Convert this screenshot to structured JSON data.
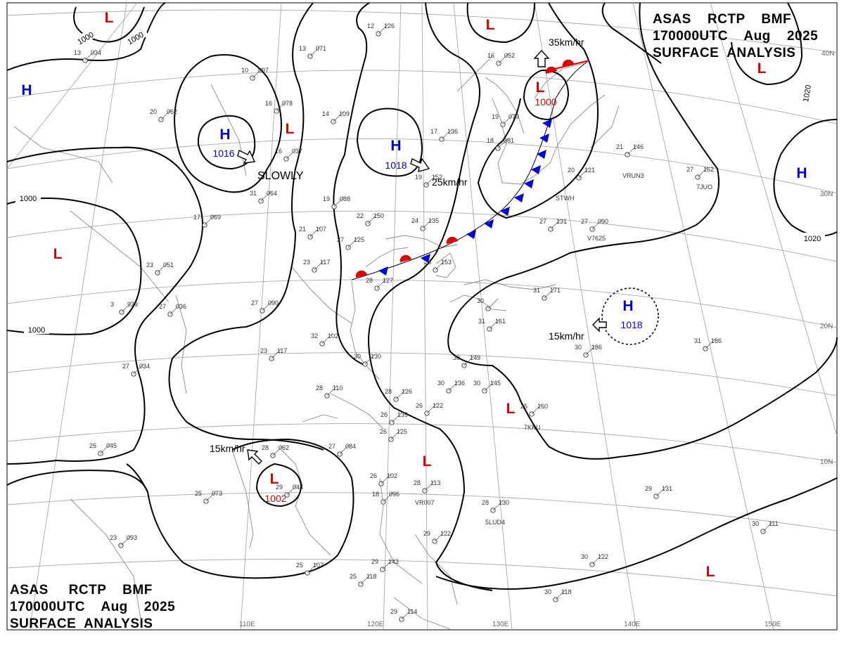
{
  "header_top_right": {
    "line1": "ASAS    RCTP    BMF",
    "line2": "170000UTC    Aug    2025",
    "line3": "SURFACE  ANALYSIS"
  },
  "header_bottom_left": {
    "line1": "ASAS     RCTP    BMF",
    "line2": "170000UTC    Aug    2025",
    "line3": "SURFACE  ANALYSIS"
  },
  "lon_labels": [
    "110E",
    "120E",
    "130E",
    "140E",
    "150E"
  ],
  "lat_labels": [
    "40N",
    "30N",
    "20N",
    "10N"
  ],
  "pressure_centers": [
    {
      "type": "L",
      "value": ""
    },
    {
      "type": "H",
      "value": ""
    },
    {
      "type": "H",
      "value": "1016"
    },
    {
      "type": "L",
      "value": ""
    },
    {
      "type": "H",
      "value": "1018"
    },
    {
      "type": "L",
      "value": "1000"
    },
    {
      "type": "L",
      "value": ""
    },
    {
      "type": "H",
      "value": ""
    },
    {
      "type": "L",
      "value": ""
    },
    {
      "type": "H",
      "value": "1018"
    },
    {
      "type": "L",
      "value": ""
    },
    {
      "type": "L",
      "value": "1002"
    },
    {
      "type": "L",
      "value": ""
    },
    {
      "type": "L",
      "value": ""
    },
    {
      "type": "L",
      "value": ""
    }
  ],
  "isobar_labels": [
    "1000",
    "1000",
    "1000",
    "1000",
    "1020",
    "1020"
  ],
  "motion_labels": [
    "35km/hr",
    "SLOWLY",
    "25km/hr",
    "15km/hr",
    "15km/hr"
  ],
  "stations": [
    {
      "t": "13",
      "p": "034"
    },
    {
      "t": "13",
      "p": "071"
    },
    {
      "t": "10",
      "p": "097"
    },
    {
      "t": "12",
      "p": "126"
    },
    {
      "t": "16",
      "p": "078"
    },
    {
      "t": "14",
      "p": "109"
    },
    {
      "t": "20",
      "p": "062"
    },
    {
      "t": "16",
      "p": "037"
    },
    {
      "t": "17",
      "p": "136"
    },
    {
      "t": "16",
      "p": "052"
    },
    {
      "t": "19",
      "p": "079"
    },
    {
      "t": "18",
      "p": "081"
    },
    {
      "t": "21",
      "p": "146"
    },
    {
      "t": "20",
      "p": "121"
    },
    {
      "t": "27",
      "p": "162"
    },
    {
      "t": "31",
      "p": "064"
    },
    {
      "t": "19",
      "p": "088"
    },
    {
      "t": "19",
      "p": "152"
    },
    {
      "t": "22",
      "p": "150"
    },
    {
      "t": "24",
      "p": "135"
    },
    {
      "t": "17",
      "p": "069"
    },
    {
      "t": "21",
      "p": "107"
    },
    {
      "t": "27",
      "p": "125"
    },
    {
      "t": "27",
      "p": "131"
    },
    {
      "t": "27",
      "p": "090"
    },
    {
      "t": "23",
      "p": "051"
    },
    {
      "t": "23",
      "p": "117"
    },
    {
      "t": "28",
      "p": "153"
    },
    {
      "t": "28",
      "p": "127"
    },
    {
      "t": "3",
      "p": "929"
    },
    {
      "t": "27",
      "p": "036"
    },
    {
      "t": "27",
      "p": "090"
    },
    {
      "t": "30",
      "p": ""
    },
    {
      "t": "31",
      "p": "171"
    },
    {
      "t": "31",
      "p": "161"
    },
    {
      "t": "27",
      "p": "034"
    },
    {
      "t": "23",
      "p": "117"
    },
    {
      "t": "32",
      "p": "102"
    },
    {
      "t": "30",
      "p": "130"
    },
    {
      "t": "28",
      "p": "110"
    },
    {
      "t": "30",
      "p": "149"
    },
    {
      "t": "30",
      "p": "136"
    },
    {
      "t": "30",
      "p": "145"
    },
    {
      "t": "31",
      "p": "186"
    },
    {
      "t": "30",
      "p": "186"
    },
    {
      "t": "28",
      "p": "126"
    },
    {
      "t": "26",
      "p": "139"
    },
    {
      "t": "26",
      "p": "122"
    },
    {
      "t": "25",
      "p": "160"
    },
    {
      "t": "26",
      "p": "045"
    },
    {
      "t": "28",
      "p": "062"
    },
    {
      "t": "27",
      "p": "084"
    },
    {
      "t": "26",
      "p": "125"
    },
    {
      "t": "29",
      "p": "044"
    },
    {
      "t": "25",
      "p": "073"
    },
    {
      "t": "26",
      "p": "102"
    },
    {
      "t": "28",
      "p": "113"
    },
    {
      "t": "18",
      "p": "096"
    },
    {
      "t": "28",
      "p": "130"
    },
    {
      "t": "29",
      "p": "131"
    },
    {
      "t": "23",
      "p": "093"
    },
    {
      "t": "25",
      "p": "107"
    },
    {
      "t": "25",
      "p": "118"
    },
    {
      "t": "29",
      "p": "143"
    },
    {
      "t": "29",
      "p": "122"
    },
    {
      "t": "30",
      "p": "111"
    },
    {
      "t": "30",
      "p": "122"
    },
    {
      "t": "30",
      "p": "118"
    },
    {
      "t": "29",
      "p": "114"
    }
  ],
  "ship_ids": [
    "VRUN3",
    "7JUO",
    "STWH",
    "V7625",
    "7KKU",
    "VR007",
    "5LUD4"
  ],
  "colors": {
    "low": "#e00000",
    "high": "#0000e0",
    "isobar": "#000000",
    "grid": "#a8a8a8",
    "coast": "#888888"
  }
}
